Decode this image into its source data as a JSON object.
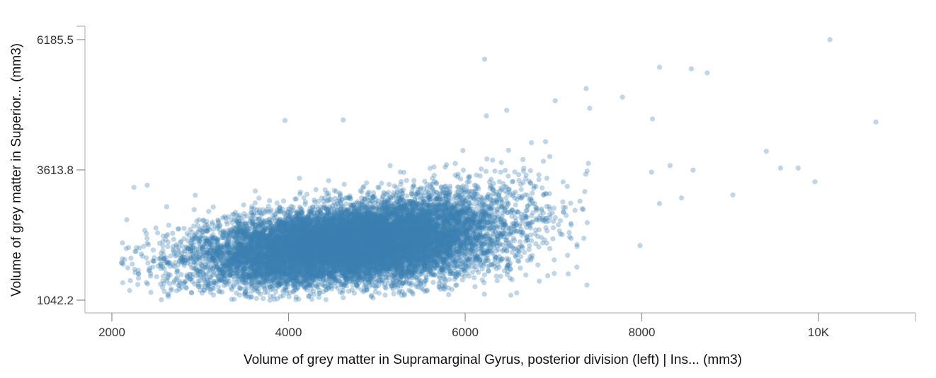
{
  "chart_data": {
    "type": "scatter",
    "title": "",
    "xlabel": "Volume of grey matter in Supramarginal Gyrus, posterior division (left) | Ins... (mm3)",
    "ylabel": "Volume of grey matter in Superior... (mm3)",
    "xlim": [
      1650,
      11150
    ],
    "ylim": [
      800,
      6450
    ],
    "x_ticks": [
      {
        "value": 2000,
        "label": "2000"
      },
      {
        "value": 4000,
        "label": "4000"
      },
      {
        "value": 6000,
        "label": "6000"
      },
      {
        "value": 8000,
        "label": "8000"
      },
      {
        "value": 10000,
        "label": "10K"
      }
    ],
    "y_ticks": [
      {
        "value": 1042.2,
        "label": "1042.2"
      },
      {
        "value": 3613.8,
        "label": "3613.8"
      },
      {
        "value": 6185.5,
        "label": "6185.5"
      }
    ],
    "grid": false,
    "marker_color": "#3b7fb0",
    "main_cluster": {
      "center": {
        "x": 4700,
        "y": 2150
      },
      "x_sd": 850,
      "y_sd": 380,
      "x_range": [
        2100,
        7400
      ],
      "y_range": [
        1050,
        4400
      ],
      "correlation": 0.35,
      "count": 14000
    },
    "outliers": [
      {
        "x": 10130,
        "y": 6185
      },
      {
        "x": 10650,
        "y": 4560
      },
      {
        "x": 6220,
        "y": 5800
      },
      {
        "x": 8200,
        "y": 5640
      },
      {
        "x": 8560,
        "y": 5610
      },
      {
        "x": 8740,
        "y": 5530
      },
      {
        "x": 7370,
        "y": 5220
      },
      {
        "x": 7780,
        "y": 5050
      },
      {
        "x": 7020,
        "y": 4980
      },
      {
        "x": 7410,
        "y": 4830
      },
      {
        "x": 8120,
        "y": 4620
      },
      {
        "x": 9410,
        "y": 3980
      },
      {
        "x": 9570,
        "y": 3650
      },
      {
        "x": 9770,
        "y": 3650
      },
      {
        "x": 9960,
        "y": 3380
      },
      {
        "x": 9030,
        "y": 3120
      },
      {
        "x": 8450,
        "y": 3060
      },
      {
        "x": 8320,
        "y": 3700
      },
      {
        "x": 8580,
        "y": 3610
      },
      {
        "x": 7980,
        "y": 2120
      },
      {
        "x": 8200,
        "y": 2950
      },
      {
        "x": 8110,
        "y": 3570
      },
      {
        "x": 6750,
        "y": 4150
      },
      {
        "x": 6910,
        "y": 4170
      },
      {
        "x": 6470,
        "y": 4790
      },
      {
        "x": 6240,
        "y": 4680
      },
      {
        "x": 4620,
        "y": 4600
      },
      {
        "x": 3960,
        "y": 4590
      },
      {
        "x": 2400,
        "y": 3310
      },
      {
        "x": 2250,
        "y": 3270
      },
      {
        "x": 2640,
        "y": 1110
      },
      {
        "x": 2560,
        "y": 1050
      },
      {
        "x": 3790,
        "y": 1040
      },
      {
        "x": 2110,
        "y": 1780
      },
      {
        "x": 2180,
        "y": 1680
      },
      {
        "x": 2300,
        "y": 1560
      }
    ]
  }
}
